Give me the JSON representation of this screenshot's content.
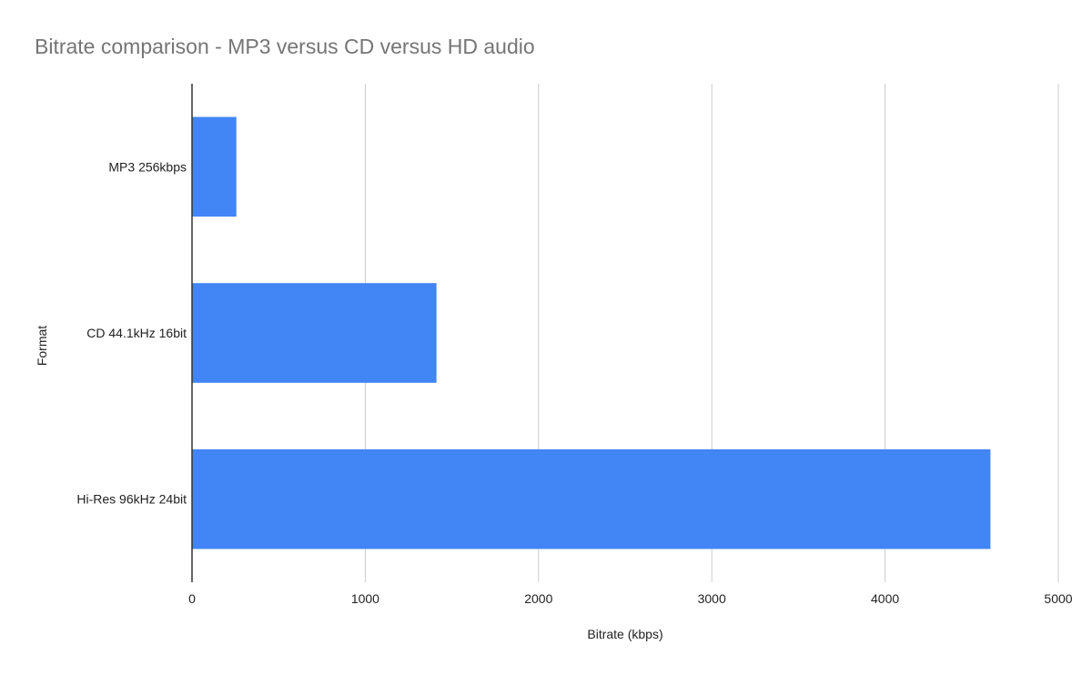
{
  "chart_data": {
    "type": "bar",
    "orientation": "horizontal",
    "title": "Bitrate comparison - MP3 versus CD versus HD audio",
    "xlabel": "Bitrate (kbps)",
    "ylabel": "Format",
    "categories": [
      "MP3 256kbps",
      "CD 44.1kHz 16bit",
      "Hi-Res 96kHz 24bit"
    ],
    "values": [
      256,
      1411,
      4608
    ],
    "xlim": [
      0,
      5000
    ],
    "xticks": [
      0,
      1000,
      2000,
      3000,
      4000,
      5000
    ],
    "grid": true,
    "legend": "none",
    "colors": {
      "bar": "#4285f4",
      "grid": "#cccccc",
      "axis": "#333333",
      "title": "#757575"
    }
  }
}
